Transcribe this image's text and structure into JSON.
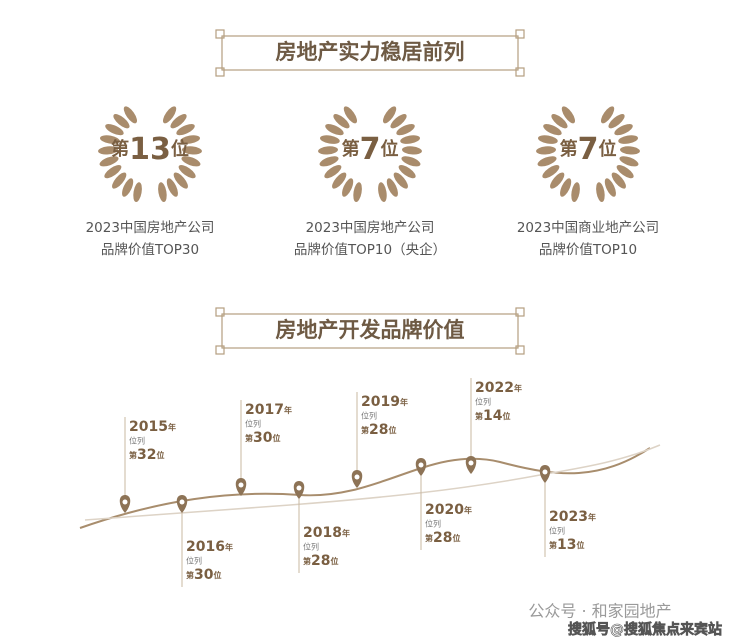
{
  "section1": {
    "title": "房地产实力稳居前列"
  },
  "awards": [
    {
      "prefix": "第",
      "rank": "13",
      "suffix": "位",
      "line1": "2023中国房地产公司",
      "line2": "品牌价值TOP30"
    },
    {
      "prefix": "第",
      "rank": "7",
      "suffix": "位",
      "line1": "2023中国房地产公司",
      "line2": "品牌价值TOP10（央企）"
    },
    {
      "prefix": "第",
      "rank": "7",
      "suffix": "位",
      "line1": "2023中国商业地产公司",
      "line2": "品牌价值TOP10"
    }
  ],
  "section2": {
    "title": "房地产开发品牌价值"
  },
  "timeline": [
    {
      "year": "2015",
      "year_unit": "年",
      "caption": "位列",
      "prefix": "第",
      "rank": "32",
      "suffix": "位"
    },
    {
      "year": "2016",
      "year_unit": "年",
      "caption": "位列",
      "prefix": "第",
      "rank": "30",
      "suffix": "位"
    },
    {
      "year": "2017",
      "year_unit": "年",
      "caption": "位列",
      "prefix": "第",
      "rank": "30",
      "suffix": "位"
    },
    {
      "year": "2018",
      "year_unit": "年",
      "caption": "位列",
      "prefix": "第",
      "rank": "28",
      "suffix": "位"
    },
    {
      "year": "2019",
      "year_unit": "年",
      "caption": "位列",
      "prefix": "第",
      "rank": "28",
      "suffix": "位"
    },
    {
      "year": "2020",
      "year_unit": "年",
      "caption": "位列",
      "prefix": "第",
      "rank": "28",
      "suffix": "位"
    },
    {
      "year": "2022",
      "year_unit": "年",
      "caption": "位列",
      "prefix": "第",
      "rank": "14",
      "suffix": "位"
    },
    {
      "year": "2023",
      "year_unit": "年",
      "caption": "位列",
      "prefix": "第",
      "rank": "13",
      "suffix": "位"
    }
  ],
  "watermark": {
    "line1": "公众号 · 和家园地产",
    "line2": "搜狐号@搜狐焦点来宾站"
  }
}
